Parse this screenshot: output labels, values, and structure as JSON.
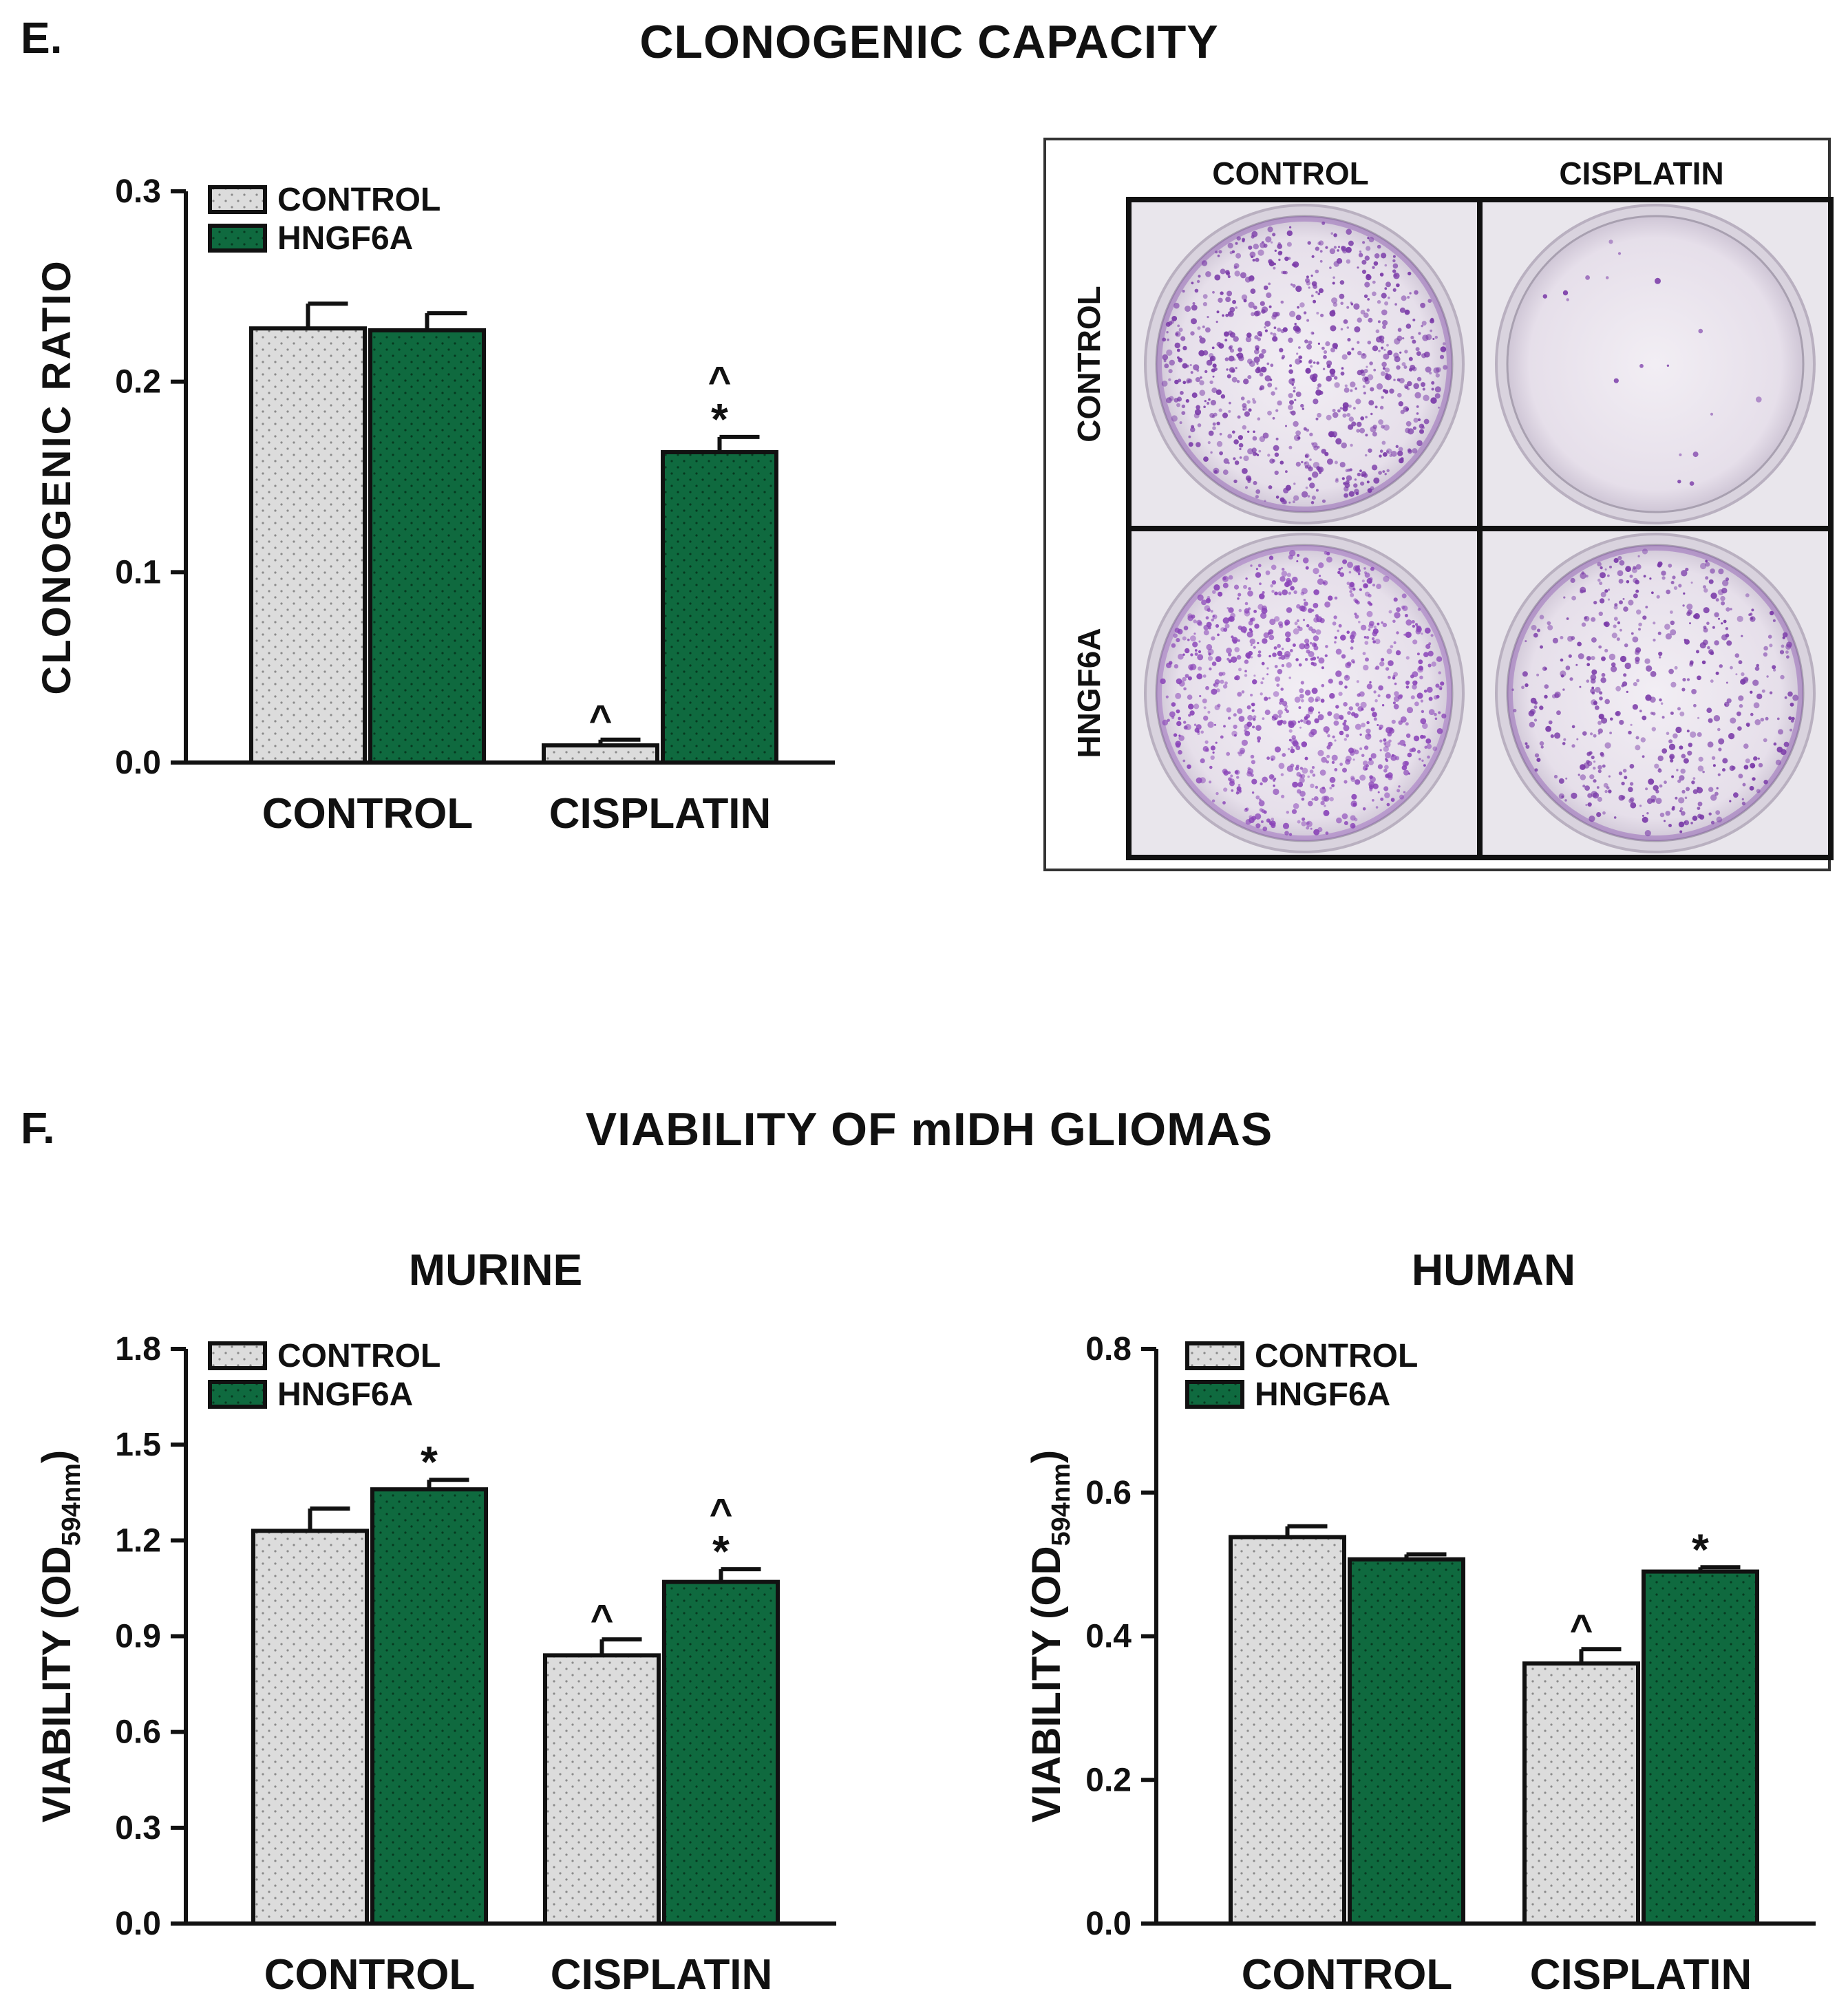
{
  "panel_e": {
    "letter": "E.",
    "title": "CLONOGENIC CAPACITY"
  },
  "panel_f": {
    "letter": "F.",
    "title": "VIABILITY OF mIDH GLIOMAS"
  },
  "colors": {
    "control": "#dcdcdc",
    "hngf6a": "#0f6a3f",
    "axis": "#111111"
  },
  "photo": {
    "col_headers": [
      "CONTROL",
      "CISPLATIN"
    ],
    "row_headers": [
      "CONTROL",
      "HNGF6A"
    ],
    "dish_density": [
      [
        {
          "level": 0.9,
          "color": "#7a3aa8"
        },
        {
          "level": 0.02,
          "color": "#7a3aa8"
        }
      ],
      [
        {
          "level": 1.0,
          "color": "#8a44b8"
        },
        {
          "level": 0.6,
          "color": "#7a3aa8"
        }
      ]
    ]
  },
  "chart_data": [
    {
      "type": "bar",
      "title": "",
      "ylabel": "CLONOGENIC RATIO",
      "xlabel": "",
      "categories": [
        "CONTROL",
        "CISPLATIN"
      ],
      "ylim": [
        0,
        0.3
      ],
      "yticks": [
        "0.0",
        "0.1",
        "0.2",
        "0.3"
      ],
      "legend_position": "top-left",
      "series": [
        {
          "name": "CONTROL",
          "values": [
            0.228,
            0.009
          ],
          "errors": [
            0.013,
            0.003
          ],
          "annotations": [
            "",
            "^"
          ]
        },
        {
          "name": "HNGF6A",
          "values": [
            0.227,
            0.163
          ],
          "errors": [
            0.009,
            0.008
          ],
          "annotations": [
            "",
            "^*"
          ]
        }
      ]
    },
    {
      "type": "bar",
      "title": "MURINE",
      "ylabel": "VIABILITY (OD594nm)",
      "ylabel_main": "VIABILITY (OD",
      "ylabel_sub": "594nm",
      "ylabel_end": ")",
      "xlabel": "",
      "categories": [
        "CONTROL",
        "CISPLATIN"
      ],
      "ylim": [
        0,
        1.8
      ],
      "yticks": [
        "0.0",
        "0.3",
        "0.6",
        "0.9",
        "1.2",
        "1.5",
        "1.8"
      ],
      "legend_position": "top-left",
      "series": [
        {
          "name": "CONTROL",
          "values": [
            1.23,
            0.84
          ],
          "errors": [
            0.07,
            0.05
          ],
          "annotations": [
            "",
            "^"
          ]
        },
        {
          "name": "HNGF6A",
          "values": [
            1.36,
            1.07
          ],
          "errors": [
            0.03,
            0.04
          ],
          "annotations": [
            "*",
            "^*"
          ]
        }
      ]
    },
    {
      "type": "bar",
      "title": "HUMAN",
      "ylabel": "VIABILITY (OD594nm)",
      "ylabel_main": "VIABILITY (OD",
      "ylabel_sub": "594nm",
      "ylabel_end": ")",
      "xlabel": "",
      "categories": [
        "CONTROL",
        "CISPLATIN"
      ],
      "ylim": [
        0,
        0.8
      ],
      "yticks": [
        "0.0",
        "0.2",
        "0.4",
        "0.6",
        "0.8"
      ],
      "legend_position": "top-left",
      "series": [
        {
          "name": "CONTROL",
          "values": [
            0.538,
            0.362
          ],
          "errors": [
            0.015,
            0.02
          ],
          "annotations": [
            "",
            "^"
          ]
        },
        {
          "name": "HNGF6A",
          "values": [
            0.507,
            0.49
          ],
          "errors": [
            0.007,
            0.006
          ],
          "annotations": [
            "",
            "*"
          ]
        }
      ]
    }
  ]
}
